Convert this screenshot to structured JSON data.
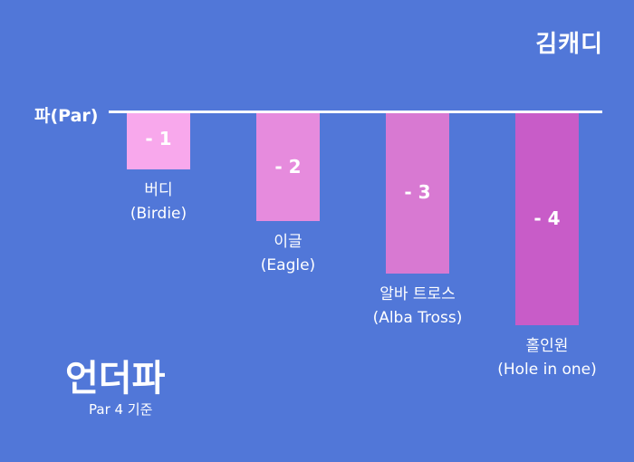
{
  "brand": "김캐디",
  "title": "언더파",
  "subtitle": "Par 4 기준",
  "par_label": "파(Par)",
  "colors": {
    "background": "#5177D8",
    "bars": [
      "#F8A8EC",
      "#E68BDD",
      "#D879D2",
      "#C85CC8"
    ]
  },
  "chart_data": {
    "type": "bar",
    "title": "언더파",
    "baseline_label": "파(Par)",
    "categories": [
      "버디 (Birdie)",
      "이글 (Eagle)",
      "알바 트로스 (Alba Tross)",
      "홀인원 (Hole in one)"
    ],
    "values": [
      -1,
      -2,
      -3,
      -4
    ],
    "value_labels": [
      "- 1",
      "- 2",
      "- 3",
      "- 4"
    ],
    "label_lines": [
      [
        "버디",
        "(Birdie)"
      ],
      [
        "이글",
        "(Eagle)"
      ],
      [
        "알바 트로스",
        "(Alba Tross)"
      ],
      [
        "홀인원",
        "(Hole in one)"
      ]
    ],
    "ylim": [
      -4,
      0
    ],
    "grid": false,
    "legend": "none"
  }
}
